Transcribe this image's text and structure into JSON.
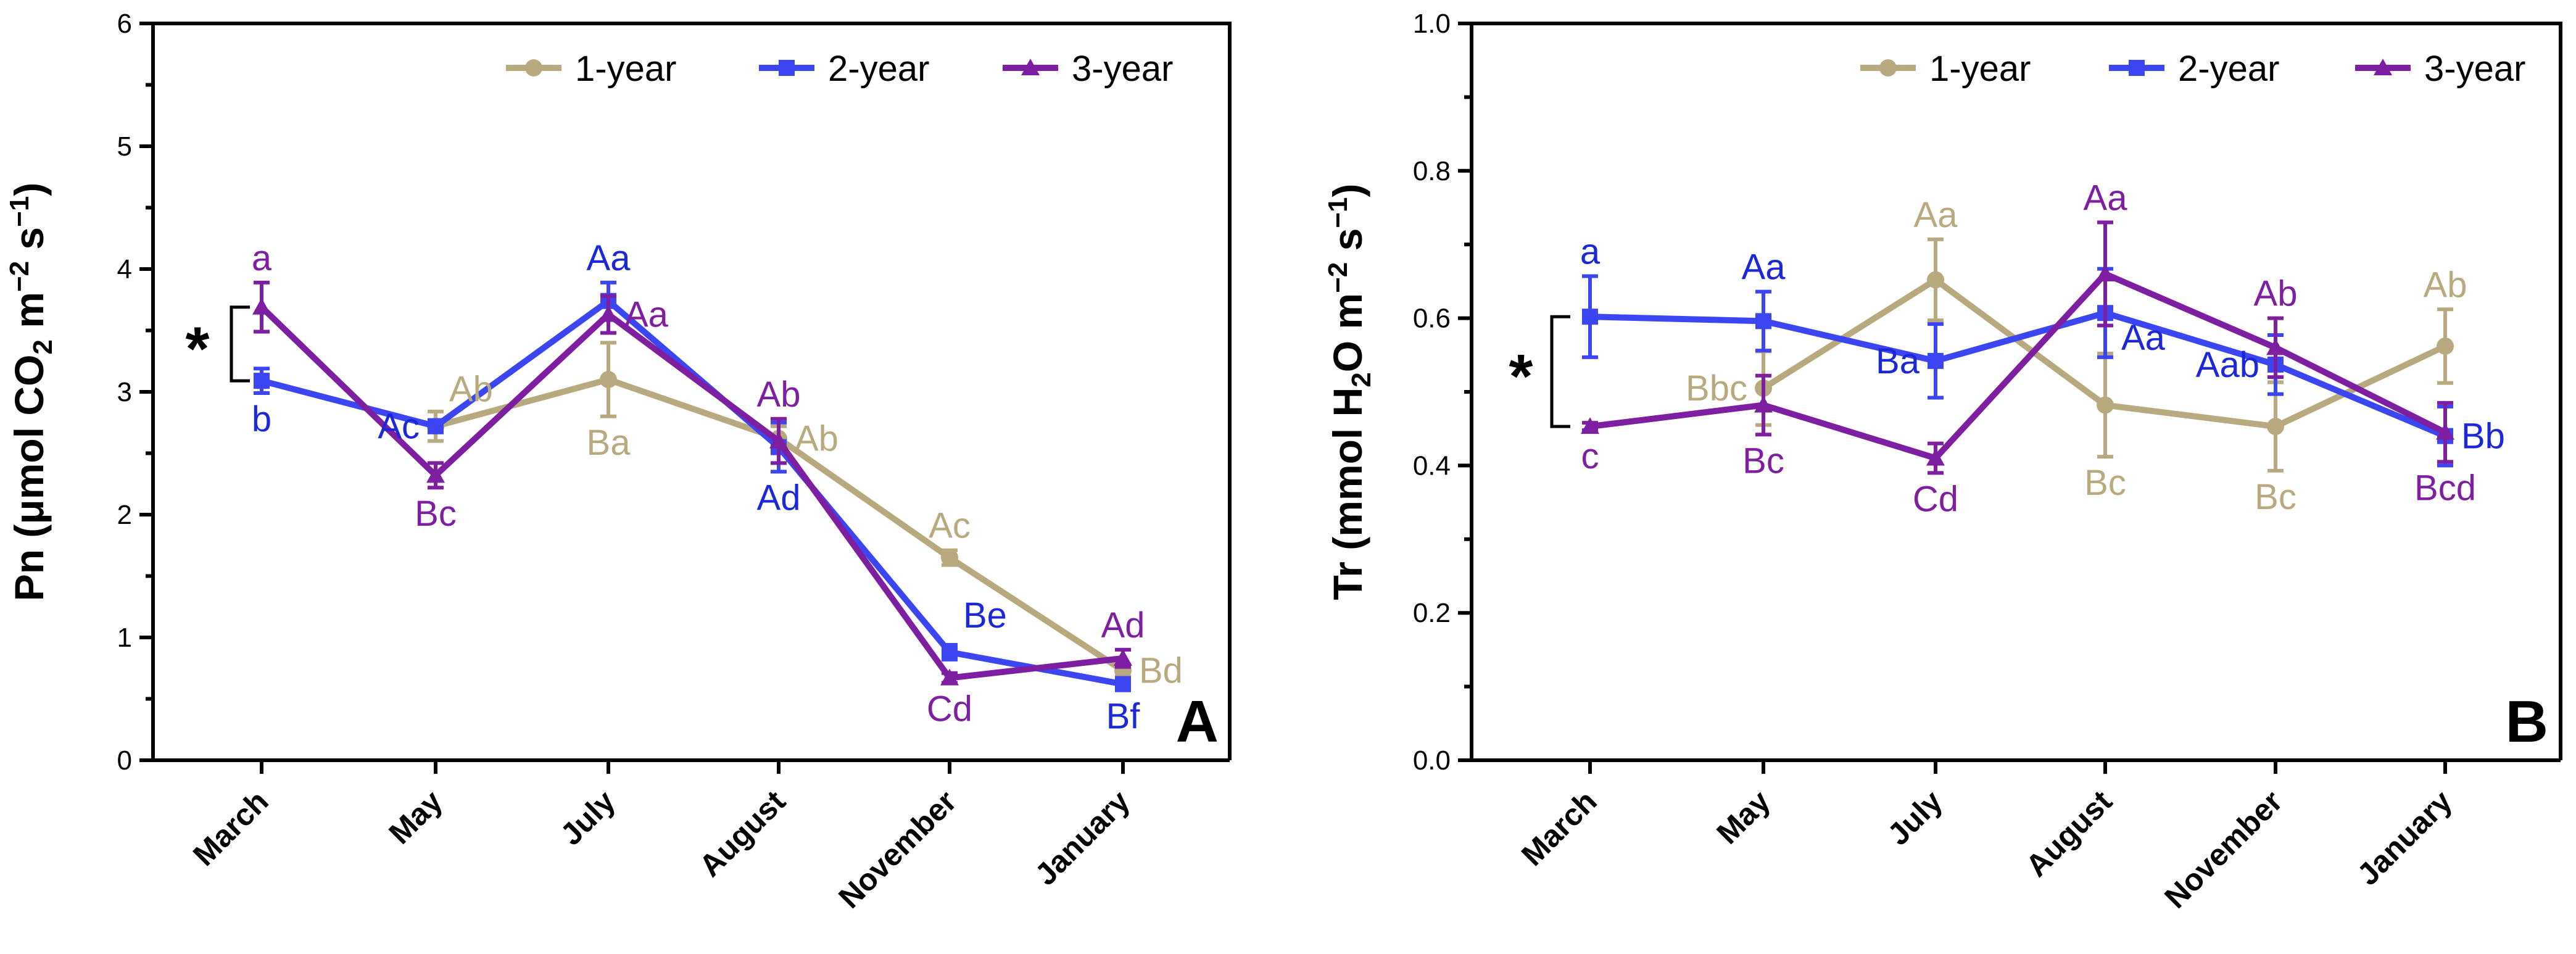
{
  "colors": {
    "one_year": "#b8aa7e",
    "two_year": "#3b46f2",
    "three_year": "#7d1fa0",
    "two_year_letters": "#1c28d8"
  },
  "legend": {
    "one_year": "1-year",
    "two_year": "2-year",
    "three_year": "3-year"
  },
  "chart_data": [
    {
      "panel": "A",
      "type": "line",
      "ylabel_main": "Pn (μmol CO",
      "ylabel_sub": "2",
      "ylabel_unit": " m",
      "ylabel_sup1": "−2",
      "ylabel_s": " s",
      "ylabel_sup2": "−1",
      "ylabel_close": ")",
      "ylim": [
        0,
        6
      ],
      "yticks": [
        "0",
        "1",
        "2",
        "3",
        "4",
        "5",
        "6"
      ],
      "categories": [
        "March",
        "May",
        "July",
        "August",
        "November",
        "January"
      ],
      "series": [
        {
          "name": "1-year",
          "values": [
            null,
            2.72,
            3.1,
            2.62,
            1.65,
            0.73
          ],
          "errors": [
            null,
            0.12,
            0.3,
            0.1,
            0.06,
            0.05
          ]
        },
        {
          "name": "2-year",
          "values": [
            3.09,
            2.72,
            3.74,
            2.55,
            0.88,
            0.62
          ],
          "errors": [
            0.1,
            0.05,
            0.15,
            0.2,
            0.06,
            0.05
          ]
        },
        {
          "name": "3-year",
          "values": [
            3.69,
            2.32,
            3.63,
            2.6,
            0.67,
            0.83
          ],
          "errors": [
            0.2,
            0.1,
            0.15,
            0.18,
            0.04,
            0.07
          ]
        }
      ],
      "significance": "*",
      "annotations": [
        {
          "text": "a",
          "series": 2,
          "index": 0,
          "pos": "above"
        },
        {
          "text": "b",
          "series": 1,
          "index": 0,
          "pos": "below"
        },
        {
          "text": "Ac",
          "series": 1,
          "index": 1,
          "pos": "left"
        },
        {
          "text": "Ab",
          "series": 0,
          "index": 1,
          "pos": "right-above"
        },
        {
          "text": "Bc",
          "series": 2,
          "index": 1,
          "pos": "below"
        },
        {
          "text": "Aa",
          "series": 1,
          "index": 2,
          "pos": "above"
        },
        {
          "text": "Aa",
          "series": 2,
          "index": 2,
          "pos": "right"
        },
        {
          "text": "Ba",
          "series": 0,
          "index": 2,
          "pos": "below"
        },
        {
          "text": "Ab",
          "series": 2,
          "index": 3,
          "pos": "above"
        },
        {
          "text": "Ab",
          "series": 0,
          "index": 3,
          "pos": "right"
        },
        {
          "text": "Ad",
          "series": 1,
          "index": 3,
          "pos": "below"
        },
        {
          "text": "Ac",
          "series": 0,
          "index": 4,
          "pos": "above"
        },
        {
          "text": "Be",
          "series": 1,
          "index": 4,
          "pos": "right-above"
        },
        {
          "text": "Cd",
          "series": 2,
          "index": 4,
          "pos": "below"
        },
        {
          "text": "Ad",
          "series": 2,
          "index": 5,
          "pos": "above"
        },
        {
          "text": "Bd",
          "series": 0,
          "index": 5,
          "pos": "right"
        },
        {
          "text": "Bf",
          "series": 1,
          "index": 5,
          "pos": "below"
        }
      ]
    },
    {
      "panel": "B",
      "type": "line",
      "ylabel_main": "Tr (mmol H",
      "ylabel_sub": "2",
      "ylabel_unit": "O m",
      "ylabel_sup1": "−2",
      "ylabel_s": " s",
      "ylabel_sup2": "−1",
      "ylabel_close": ")",
      "ylim": [
        0,
        1.0
      ],
      "yticks": [
        "0.0",
        "0.2",
        "0.4",
        "0.6",
        "0.8",
        "1.0"
      ],
      "categories": [
        "March",
        "May",
        "July",
        "August",
        "November",
        "January"
      ],
      "series": [
        {
          "name": "1-year",
          "values": [
            null,
            0.505,
            0.652,
            0.482,
            0.453,
            0.562
          ],
          "errors": [
            null,
            0.05,
            0.055,
            0.07,
            0.06,
            0.05
          ]
        },
        {
          "name": "2-year",
          "values": [
            0.602,
            0.596,
            0.542,
            0.607,
            0.537,
            0.44
          ],
          "errors": [
            0.055,
            0.04,
            0.05,
            0.06,
            0.04,
            0.04
          ]
        },
        {
          "name": "3-year",
          "values": [
            0.453,
            0.482,
            0.41,
            0.66,
            0.56,
            0.445
          ],
          "errors": [
            0.005,
            0.04,
            0.02,
            0.07,
            0.04,
            0.04
          ]
        }
      ],
      "significance": "*",
      "annotations": [
        {
          "text": "a",
          "series": 1,
          "index": 0,
          "pos": "above"
        },
        {
          "text": "c",
          "series": 2,
          "index": 0,
          "pos": "below"
        },
        {
          "text": "Aa",
          "series": 1,
          "index": 1,
          "pos": "above"
        },
        {
          "text": "Bbc",
          "series": 0,
          "index": 1,
          "pos": "left"
        },
        {
          "text": "Bc",
          "series": 2,
          "index": 1,
          "pos": "below"
        },
        {
          "text": "Aa",
          "series": 0,
          "index": 2,
          "pos": "above"
        },
        {
          "text": "Ba",
          "series": 1,
          "index": 2,
          "pos": "left"
        },
        {
          "text": "Cd",
          "series": 2,
          "index": 2,
          "pos": "below"
        },
        {
          "text": "Aa",
          "series": 2,
          "index": 3,
          "pos": "above"
        },
        {
          "text": "Aa",
          "series": 1,
          "index": 3,
          "pos": "right-below"
        },
        {
          "text": "Bc",
          "series": 0,
          "index": 3,
          "pos": "below"
        },
        {
          "text": "Ab",
          "series": 2,
          "index": 4,
          "pos": "above"
        },
        {
          "text": "Aab",
          "series": 1,
          "index": 4,
          "pos": "left"
        },
        {
          "text": "Bc",
          "series": 0,
          "index": 4,
          "pos": "below"
        },
        {
          "text": "Ab",
          "series": 0,
          "index": 5,
          "pos": "above"
        },
        {
          "text": "Bb",
          "series": 1,
          "index": 5,
          "pos": "right"
        },
        {
          "text": "Bcd",
          "series": 2,
          "index": 5,
          "pos": "below"
        }
      ]
    }
  ]
}
